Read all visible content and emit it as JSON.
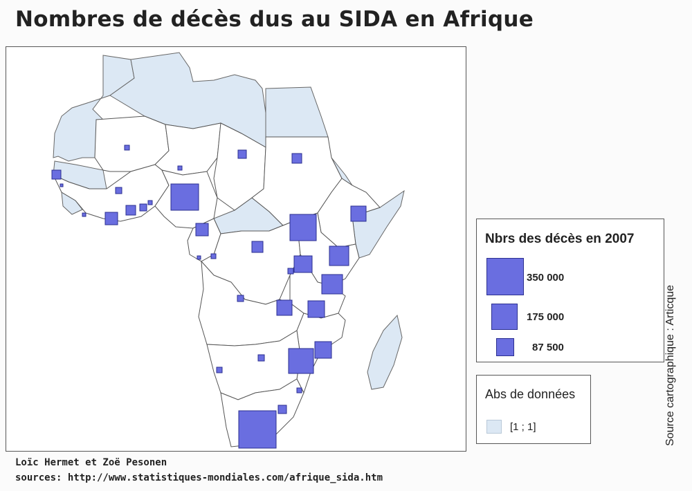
{
  "title": "Nombres de décès dus au SIDA en Afrique",
  "legend": {
    "title": "Nbrs des décès en 2007",
    "items": [
      {
        "value": 350000,
        "label": "350 000"
      },
      {
        "value": 175000,
        "label": "175 000"
      },
      {
        "value": 87500,
        "label": "87 500"
      }
    ],
    "symbol_color": "#6a6ee0"
  },
  "no_data": {
    "title": "Abs de données",
    "range": "[1 ; 1]",
    "color": "#dce8f4"
  },
  "credit": "Source cartographique : Articque",
  "authors": "Loïc Hermet et Zoë Pesonen",
  "sources": "sources: http://www.statistiques-mondiales.com/afrique_sida.htm",
  "colors": {
    "country_fill": "#ffffff",
    "country_stroke": "#555555",
    "no_data_fill": "#dce8f4",
    "symbol_stroke": "#2b2f8f"
  }
}
